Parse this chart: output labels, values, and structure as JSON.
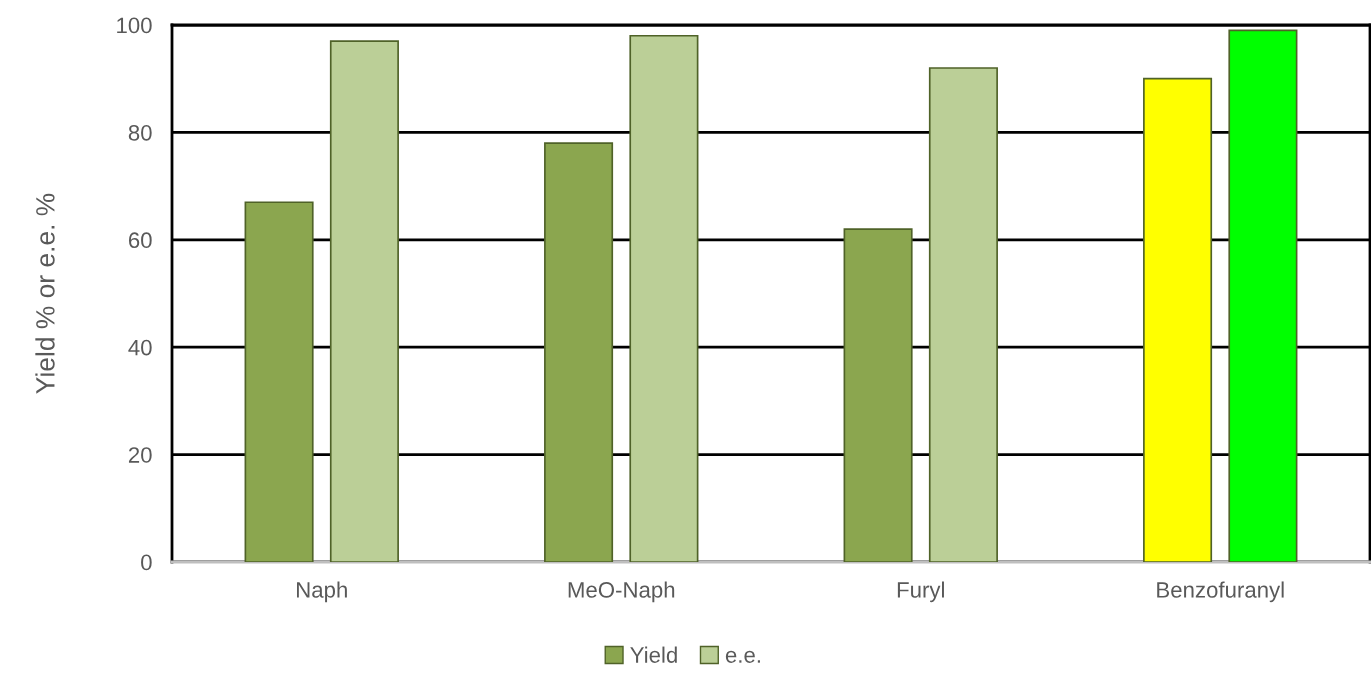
{
  "chart_data": {
    "type": "bar",
    "ylabel": "Yield % or e.e. %",
    "categories": [
      "Naph",
      "MeO-Naph",
      "Furyl",
      "Benzofuranyl"
    ],
    "series": [
      {
        "name": "Yield",
        "color": "#8ba64f",
        "colors": [
          "#8ba64f",
          "#8ba64f",
          "#8ba64f",
          "#ffff00"
        ],
        "values": [
          67,
          78,
          62,
          90
        ]
      },
      {
        "name": "e.e.",
        "color": "#bbcf97",
        "colors": [
          "#bbcf97",
          "#bbcf97",
          "#bbcf97",
          "#00ff00"
        ],
        "values": [
          97,
          98,
          92,
          99
        ]
      }
    ],
    "ylim": [
      0,
      100
    ],
    "yticks": [
      0,
      20,
      40,
      60,
      80,
      100
    ],
    "grid": "y",
    "legend": "bottom"
  }
}
